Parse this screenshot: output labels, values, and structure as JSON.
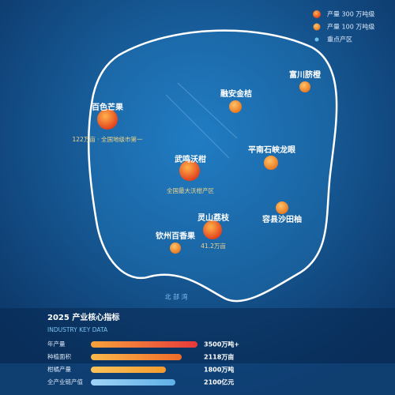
{
  "legend": [
    {
      "label": "产量 300 万吨级"
    },
    {
      "label": "产量 100 万吨级"
    },
    {
      "label": "重点产区"
    }
  ],
  "places": [
    {
      "label": "富川脐橙"
    },
    {
      "label": "融安金桔"
    },
    {
      "label": "百色芒果",
      "note": "122万亩 · 全国地级市第一"
    },
    {
      "label": "平南石峡龙眼"
    },
    {
      "label": "武鸣沃柑",
      "note": "全国最大沃柑产区"
    },
    {
      "label": "容县沙田柚"
    },
    {
      "label": "灵山荔枝",
      "note": "41.2万亩"
    },
    {
      "label": "钦州百香果"
    }
  ],
  "sea_label": "北 部 湾",
  "panel": {
    "title": "2025 产业核心指标",
    "subtitle": "INDUSTRY KEY DATA",
    "rows": [
      {
        "label": "年产量",
        "value": "3500万吨+"
      },
      {
        "label": "种植面积",
        "value": "2118万亩"
      },
      {
        "label": "柑橘产量",
        "value": "1800万吨"
      },
      {
        "label": "全产业链产值",
        "value": "2100亿元"
      }
    ]
  }
}
